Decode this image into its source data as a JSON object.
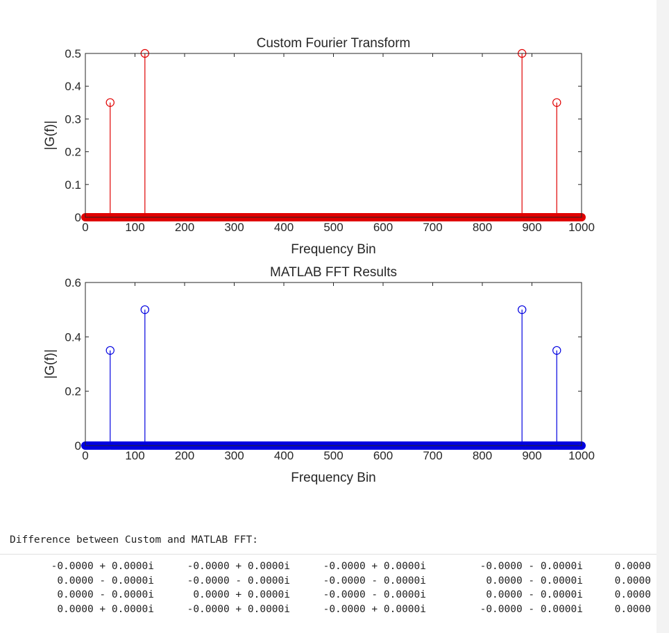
{
  "chart_data": [
    {
      "type": "stem",
      "title": "Custom Fourier Transform",
      "xlabel": "Frequency Bin",
      "ylabel": "|G(f)|",
      "xlim": [
        0,
        1000
      ],
      "ylim": [
        0,
        0.5
      ],
      "xticks": [
        0,
        100,
        200,
        300,
        400,
        500,
        600,
        700,
        800,
        900,
        1000
      ],
      "yticks": [
        0,
        0.1,
        0.2,
        0.3,
        0.4,
        0.5
      ],
      "ytick_labels": [
        "0",
        "0.1",
        "0.2",
        "0.3",
        "0.4",
        "0.5"
      ],
      "color": "#e00000",
      "baseline_value": 0,
      "nonzero": [
        {
          "x": 50,
          "y": 0.35
        },
        {
          "x": 120,
          "y": 0.5
        },
        {
          "x": 880,
          "y": 0.5
        },
        {
          "x": 950,
          "y": 0.35
        }
      ],
      "grid": false
    },
    {
      "type": "stem",
      "title": "MATLAB FFT Results",
      "xlabel": "Frequency Bin",
      "ylabel": "|G(f)|",
      "xlim": [
        0,
        1000
      ],
      "ylim": [
        0,
        0.6
      ],
      "xticks": [
        0,
        100,
        200,
        300,
        400,
        500,
        600,
        700,
        800,
        900,
        1000
      ],
      "yticks": [
        0,
        0.2,
        0.4,
        0.6
      ],
      "ytick_labels": [
        "0",
        "0.2",
        "0.4",
        "0.6"
      ],
      "color": "#0000e0",
      "baseline_value": 0,
      "nonzero": [
        {
          "x": 50,
          "y": 0.35
        },
        {
          "x": 120,
          "y": 0.5
        },
        {
          "x": 880,
          "y": 0.5
        },
        {
          "x": 950,
          "y": 0.35
        }
      ],
      "grid": false
    }
  ],
  "console": {
    "heading": "Difference between Custom and MATLAB FFT:",
    "rows": [
      [
        "-0.0000 + 0.0000i",
        "-0.0000 + 0.0000i",
        "-0.0000 + 0.0000i",
        "-0.0000 - 0.0000i",
        "0.0000"
      ],
      [
        " 0.0000 - 0.0000i",
        "-0.0000 - 0.0000i",
        "-0.0000 - 0.0000i",
        " 0.0000 - 0.0000i",
        "0.0000"
      ],
      [
        " 0.0000 - 0.0000i",
        " 0.0000 + 0.0000i",
        "-0.0000 - 0.0000i",
        " 0.0000 - 0.0000i",
        "0.0000"
      ],
      [
        " 0.0000 + 0.0000i",
        "-0.0000 + 0.0000i",
        "-0.0000 + 0.0000i",
        "-0.0000 - 0.0000i",
        "0.0000"
      ]
    ]
  }
}
